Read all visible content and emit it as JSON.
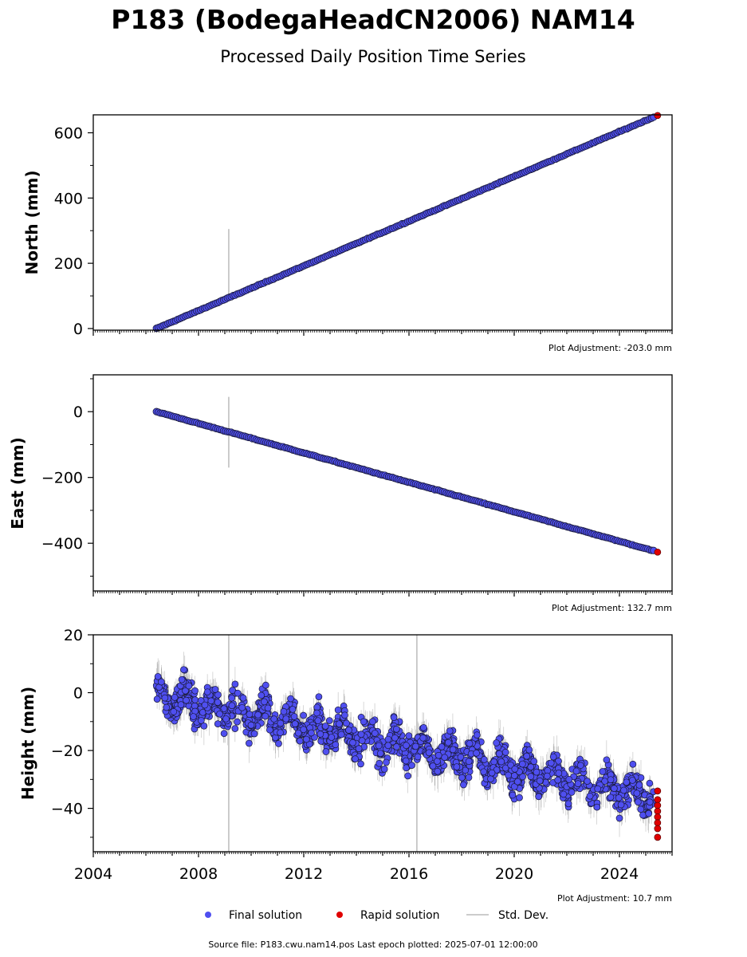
{
  "title": "P183 (BodegaHeadCN2006) NAM14",
  "subtitle": "Processed Daily Position Time Series",
  "legend": {
    "final": "Final solution",
    "rapid": "Rapid solution",
    "stddev": "Std. Dev."
  },
  "footer": "Source file: P183.cwu.nam14.pos  Last epoch plotted: 2025-07-01 12:00:00",
  "colors": {
    "final": "#4f4ff0",
    "rapid": "#e00000",
    "stddev": "#bbbbbb",
    "edge": "#1a1a3a"
  },
  "chart_data": [
    {
      "type": "scatter",
      "ylabel": "North (mm)",
      "adjustment": "Plot Adjustment: -203.0 mm",
      "xlim": [
        2004,
        2026
      ],
      "ylim": [
        -5,
        655
      ],
      "yticks": [
        0,
        200,
        400,
        600
      ],
      "ytick_labels": [
        "0",
        "200",
        "400",
        "600"
      ],
      "final_trend": {
        "x": [
          2006.4,
          2025.3
        ],
        "y": [
          0,
          648
        ]
      },
      "rapid": {
        "x": [
          2025.45
        ],
        "y": [
          653
        ]
      },
      "stddev_spikes": [
        {
          "x": 2009.15,
          "y": [
            90,
            305
          ]
        }
      ]
    },
    {
      "type": "scatter",
      "ylabel": "East (mm)",
      "adjustment": "Plot Adjustment: 132.7 mm",
      "xlim": [
        2004,
        2026
      ],
      "ylim": [
        -545,
        112
      ],
      "yticks": [
        -400,
        -200,
        0
      ],
      "ytick_labels": [
        "−400",
        "−200",
        "0"
      ],
      "final_trend": {
        "x": [
          2006.4,
          2025.3
        ],
        "y": [
          0,
          -423
        ]
      },
      "rapid": {
        "x": [
          2025.45
        ],
        "y": [
          -427
        ]
      },
      "stddev_spikes": [
        {
          "x": 2009.15,
          "y": [
            -170,
            45
          ]
        }
      ]
    },
    {
      "type": "scatter",
      "ylabel": "Height (mm)",
      "adjustment": "Plot Adjustment: 10.7 mm",
      "xlim": [
        2004,
        2026
      ],
      "ylim": [
        -55,
        20
      ],
      "yticks": [
        -40,
        -20,
        0,
        20
      ],
      "ytick_labels": [
        "−40",
        "−20",
        "0",
        "20"
      ],
      "xticks": [
        2004,
        2008,
        2012,
        2016,
        2020,
        2024
      ],
      "xtick_labels": [
        "2004",
        "2008",
        "2012",
        "2016",
        "2020",
        "2024"
      ],
      "final_trend": {
        "x": [
          2006.4,
          2025.3
        ],
        "y": [
          -1,
          -36
        ]
      },
      "seasonal_amplitude_mm": 4,
      "scatter_sd_mm": 4,
      "rapid": {
        "x": [
          2025.45,
          2025.45,
          2025.45,
          2025.45,
          2025.45,
          2025.45,
          2025.45,
          2025.45
        ],
        "y": [
          -34,
          -37,
          -39,
          -41,
          -43,
          -45,
          -47,
          -50
        ]
      },
      "stddev_spikes": [
        {
          "x": 2009.15,
          "y": [
            -55,
            20
          ]
        },
        {
          "x": 2016.3,
          "y": [
            -55,
            20
          ]
        }
      ]
    }
  ]
}
